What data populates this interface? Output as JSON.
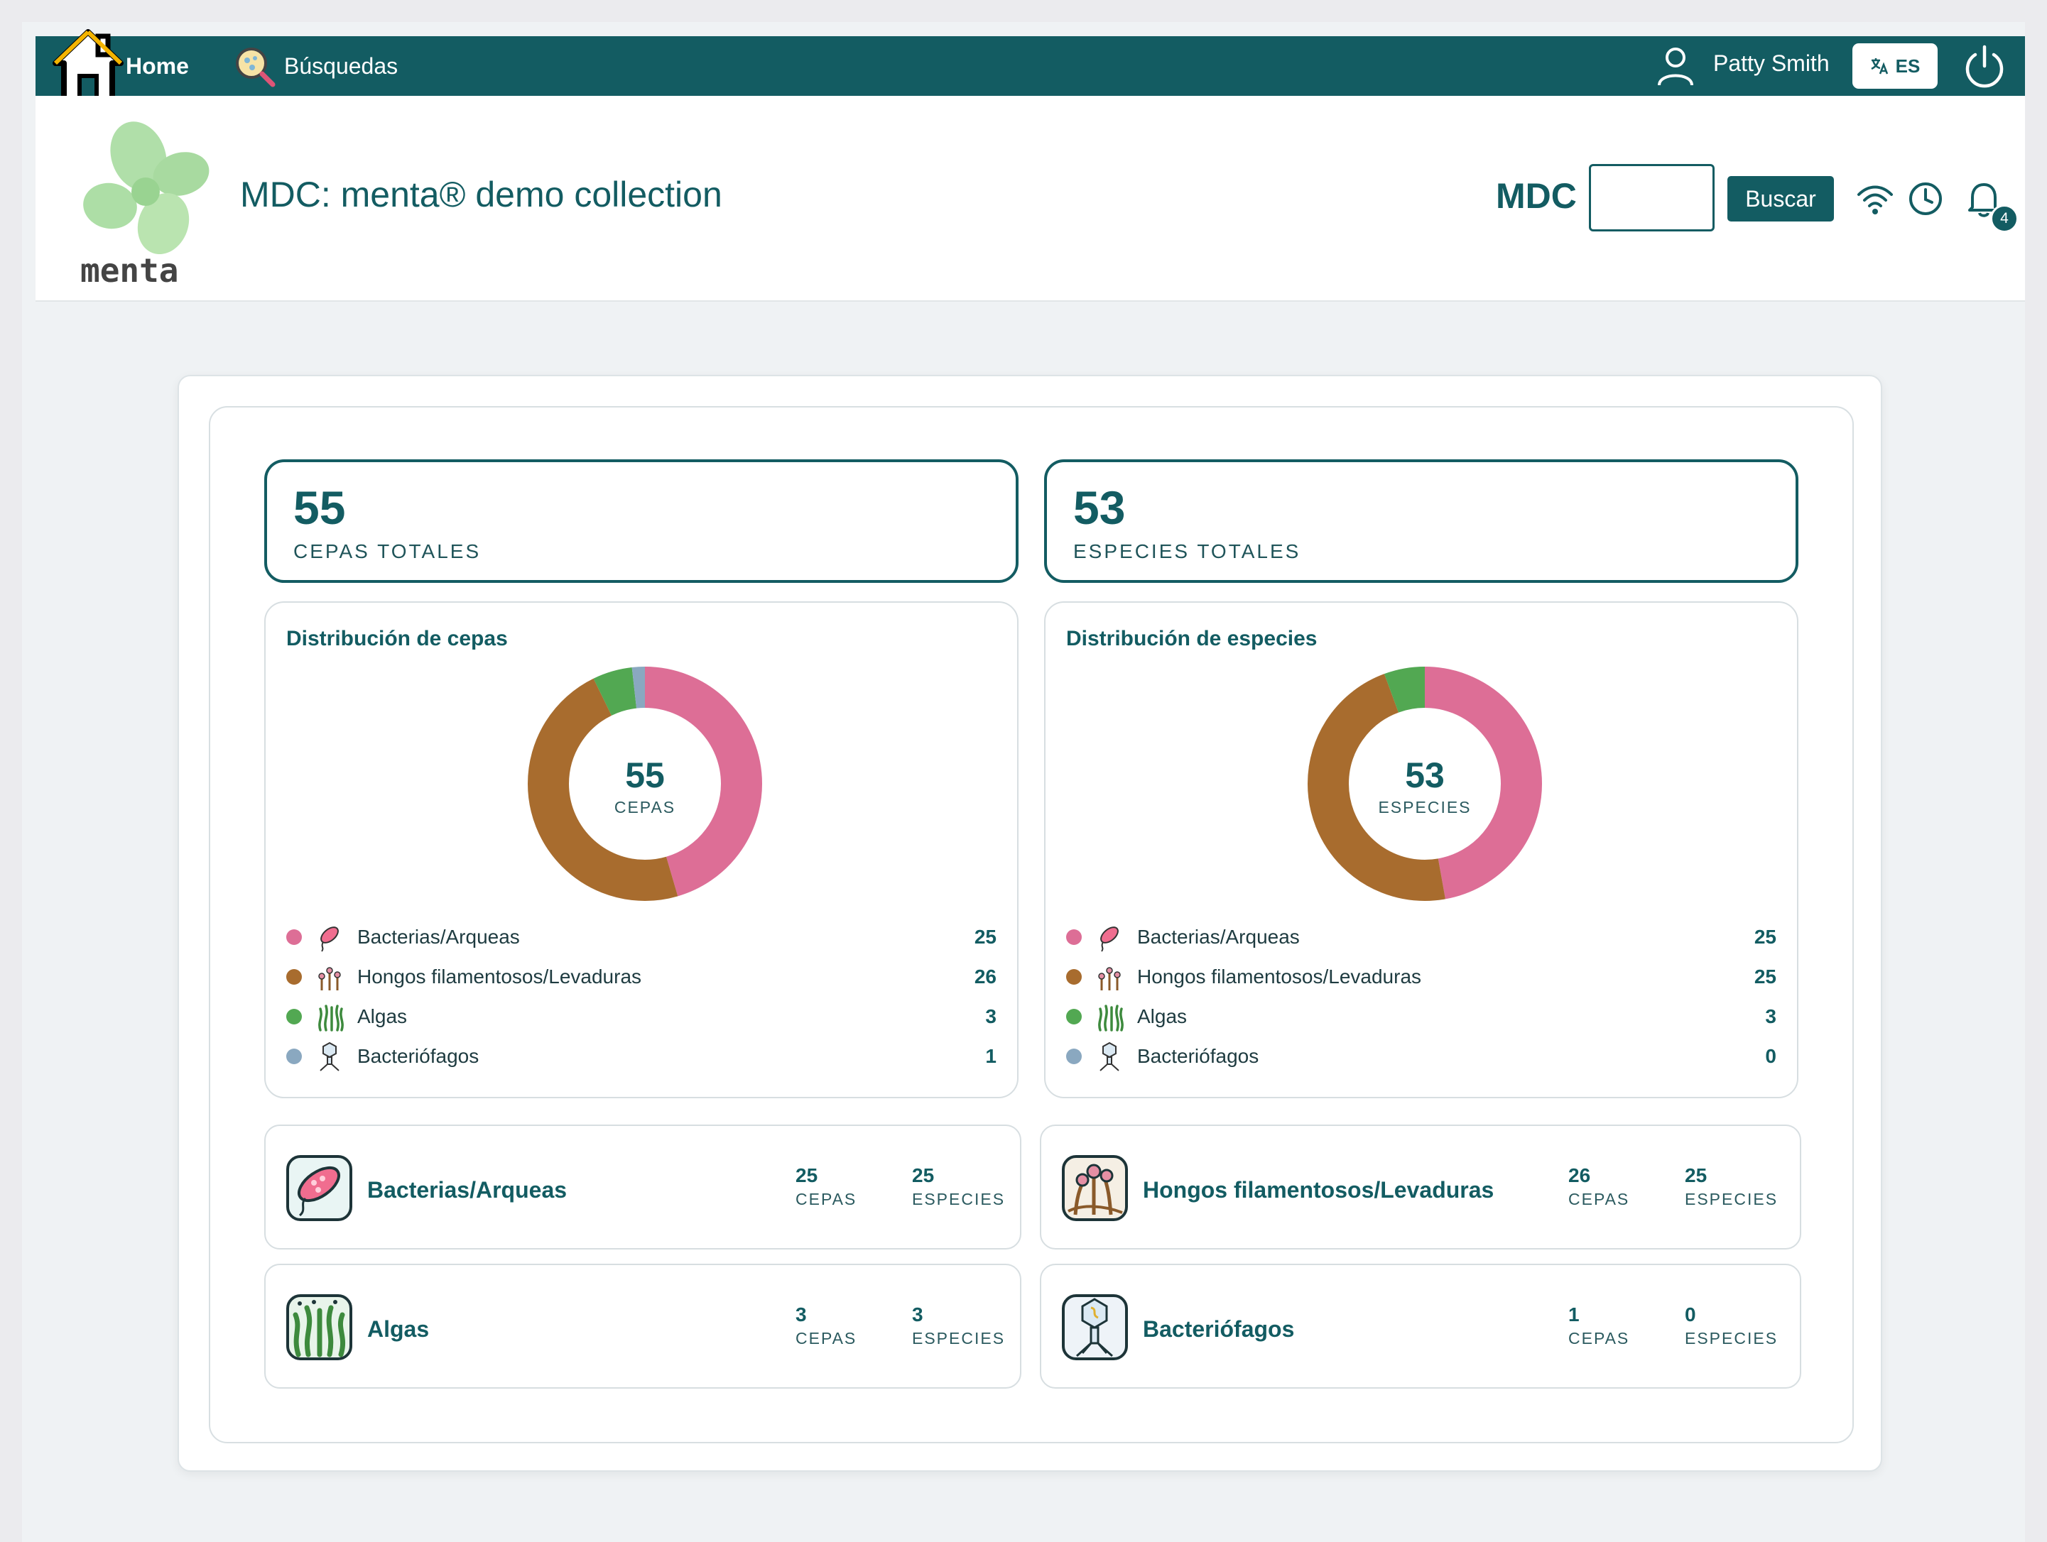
{
  "nav": {
    "home_label": "Home",
    "search_label": "Búsquedas",
    "user_name": "Patty Smith",
    "lang_label": "ES"
  },
  "header": {
    "logo_text": "menta",
    "title": "MDC: menta® demo collection",
    "mdc_label": "MDC",
    "mdc_input_value": "",
    "search_button": "Buscar",
    "notification_count": "4"
  },
  "totals": [
    {
      "value": "55",
      "label": "CEPAS TOTALES"
    },
    {
      "value": "53",
      "label": "ESPECIES TOTALES"
    }
  ],
  "distributions": [
    {
      "title": "Distribución de cepas",
      "center_value": "55",
      "center_label": "CEPAS",
      "items": [
        {
          "name": "Bacterias/Arqueas",
          "value": 25,
          "display": "25",
          "color": "#dd6e96",
          "icon": "bacteria-icon"
        },
        {
          "name": "Hongos filamentosos/Levaduras",
          "value": 26,
          "display": "26",
          "color": "#a86c2e",
          "icon": "fungi-icon"
        },
        {
          "name": "Algas",
          "value": 3,
          "display": "3",
          "color": "#52a852",
          "icon": "algae-icon"
        },
        {
          "name": "Bacteriófagos",
          "value": 1,
          "display": "1",
          "color": "#8aa8c0",
          "icon": "bacteriophage-icon"
        }
      ]
    },
    {
      "title": "Distribución de especies",
      "center_value": "53",
      "center_label": "ESPECIES",
      "items": [
        {
          "name": "Bacterias/Arqueas",
          "value": 25,
          "display": "25",
          "color": "#dd6e96",
          "icon": "bacteria-icon"
        },
        {
          "name": "Hongos filamentosos/Levaduras",
          "value": 25,
          "display": "25",
          "color": "#a86c2e",
          "icon": "fungi-icon"
        },
        {
          "name": "Algas",
          "value": 3,
          "display": "3",
          "color": "#52a852",
          "icon": "algae-icon"
        },
        {
          "name": "Bacteriófagos",
          "value": 0,
          "display": "0",
          "color": "#8aa8c0",
          "icon": "bacteriophage-icon"
        }
      ]
    }
  ],
  "categories": [
    {
      "name": "Bacterias/Arqueas",
      "cepas": "25",
      "especies": "25",
      "cepas_label": "CEPAS",
      "especies_label": "ESPECIES",
      "icon": "bacteria-icon"
    },
    {
      "name": "Hongos filamentosos/Levaduras",
      "cepas": "26",
      "especies": "25",
      "cepas_label": "CEPAS",
      "especies_label": "ESPECIES",
      "icon": "fungi-icon"
    },
    {
      "name": "Algas",
      "cepas": "3",
      "especies": "3",
      "cepas_label": "CEPAS",
      "especies_label": "ESPECIES",
      "icon": "algae-icon"
    },
    {
      "name": "Bacteriófagos",
      "cepas": "1",
      "especies": "0",
      "cepas_label": "CEPAS",
      "especies_label": "ESPECIES",
      "icon": "bacteriophage-icon"
    }
  ],
  "colors": {
    "primary": "#135c62",
    "bacteria": "#dd6e96",
    "fungi": "#a86c2e",
    "algae": "#52a852",
    "phage": "#8aa8c0"
  }
}
